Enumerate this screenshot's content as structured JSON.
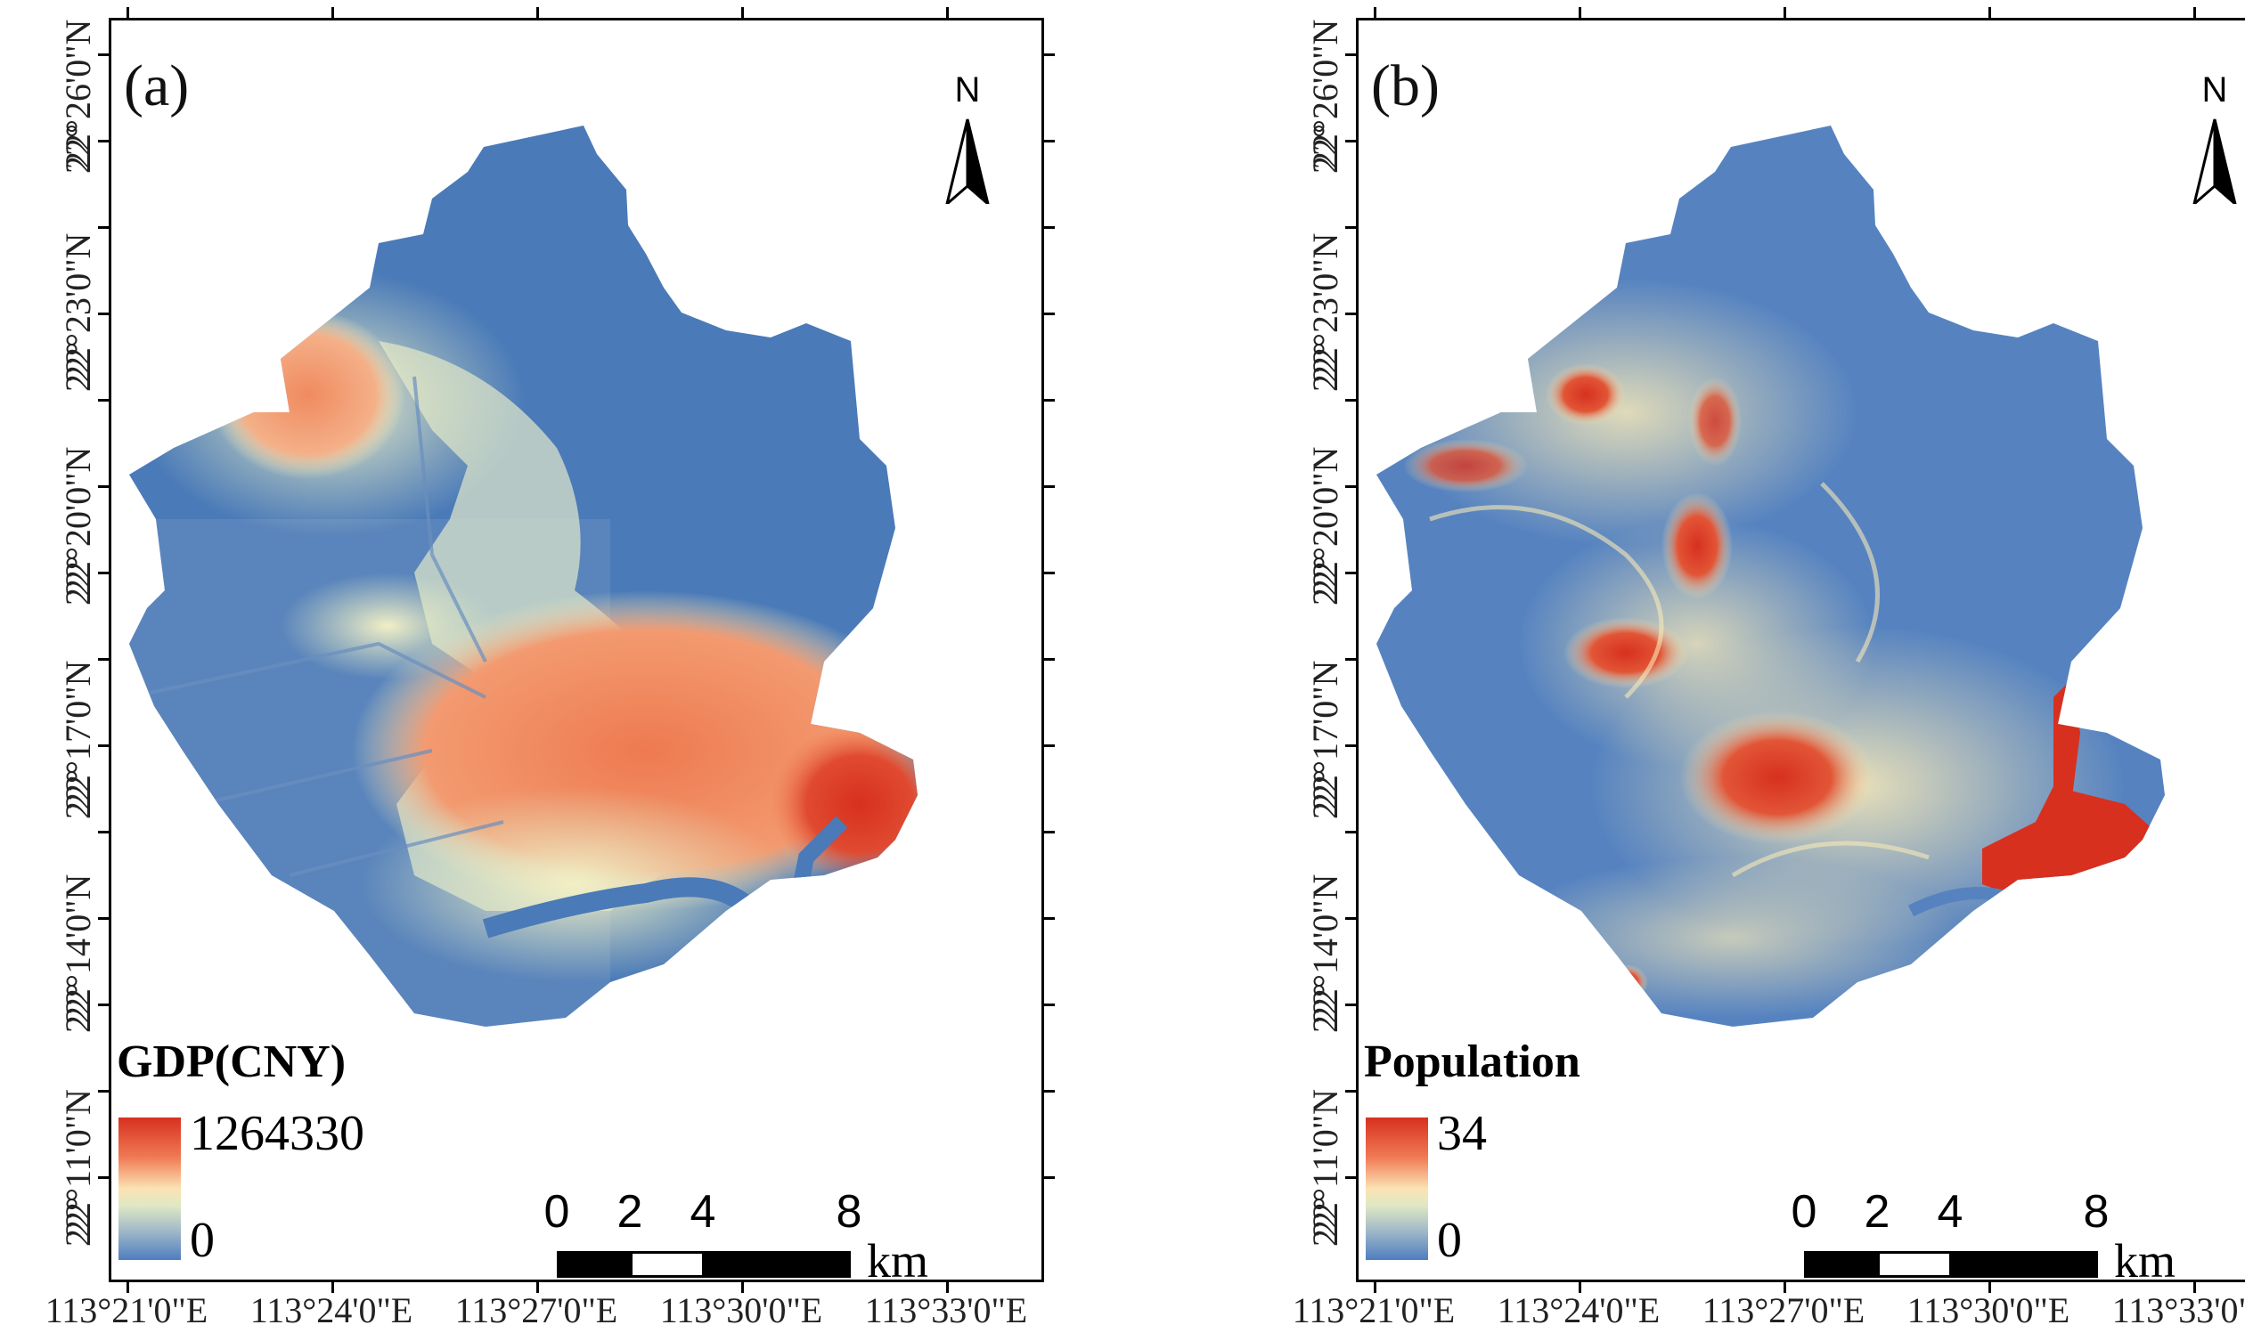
{
  "panels": [
    {
      "label": "(a)",
      "legend_title": "GDP(CNY)",
      "legend_max": "1264330",
      "legend_min": "0",
      "north": "N",
      "scale": {
        "ticks": [
          "0",
          "2",
          "4",
          "8"
        ],
        "unit": "km"
      }
    },
    {
      "label": "(b)",
      "legend_title": "Population",
      "legend_max": "34",
      "legend_min": "0",
      "north": "N",
      "scale": {
        "ticks": [
          "0",
          "2",
          "4",
          "8"
        ],
        "unit": "km"
      }
    }
  ],
  "lat_labels": [
    "22°26'0\"N",
    "22°23'0\"N",
    "22°20'0\"N",
    "22°17'0\"N",
    "22°14'0\"N",
    "22°11'0\"N"
  ],
  "lat_minor": [
    "22°",
    "22°",
    "22°",
    "22°",
    "22°",
    "22°",
    "22°"
  ],
  "lon_labels": [
    "113°21'0\"E",
    "113°24'0\"E",
    "113°27'0\"E",
    "113°30'0\"E",
    "113°33'0\"E"
  ],
  "colors": {
    "low": "#4e7dbf",
    "mid": "#f4efc0",
    "high": "#d7301f"
  }
}
